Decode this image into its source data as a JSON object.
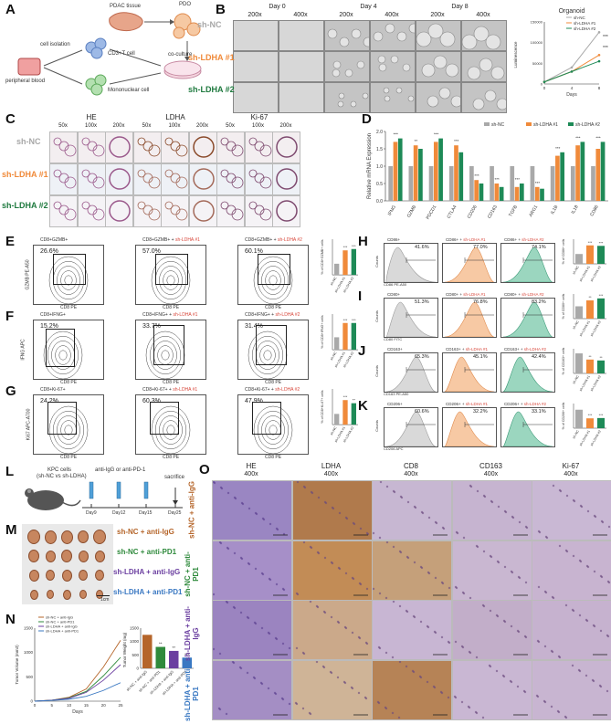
{
  "panels": [
    "A",
    "B",
    "C",
    "D",
    "E",
    "F",
    "G",
    "H",
    "I",
    "J",
    "K",
    "L",
    "M",
    "N",
    "O"
  ],
  "colors": {
    "nc": "#a9a9a9",
    "lh1": "#f08a3a",
    "lh2": "#1e8a57",
    "teal": "#4bbf9a",
    "purple": "#6b3fa0",
    "blue": "#3a78c2",
    "brown": "#b5652a"
  },
  "panelA": {
    "labels": {
      "pdac": "PDAC tissue",
      "pdo": "PDO",
      "cell_isolation": "cell isolation",
      "cd3": "CD3+T cell",
      "coculture": "co-culture",
      "mono": "Mononuclear cell",
      "pb": "peripheral blood"
    }
  },
  "panelB": {
    "days": [
      "Day 0",
      "Day 4",
      "Day 8"
    ],
    "mags": [
      "200x",
      "400x",
      "200x",
      "400x",
      "200x",
      "400x"
    ],
    "rows": [
      "sh-NC",
      "sh-LDHA #1",
      "sh-LDHA #2"
    ],
    "chart_data": {
      "type": "line",
      "title": "Organoid",
      "xlabel": "Days",
      "ylabel": "Luminescence",
      "x": [
        0,
        4,
        8
      ],
      "ylim": [
        0,
        150000
      ],
      "yticks": [
        "0",
        "50000",
        "100000",
        "150000"
      ],
      "series": [
        {
          "name": "sh-NC",
          "values": [
            5000,
            40000,
            125000
          ]
        },
        {
          "name": "sh-LDHA #1",
          "values": [
            5000,
            30000,
            70000
          ]
        },
        {
          "name": "sh-LDHA #2",
          "values": [
            5000,
            30000,
            55000
          ]
        }
      ],
      "annotations": [
        "***",
        "***"
      ]
    }
  },
  "panelC": {
    "stains": [
      "HE",
      "LDHA",
      "Ki-67"
    ],
    "mags": [
      "50x",
      "100x",
      "200x",
      "50x",
      "100x",
      "200x",
      "50x",
      "100x",
      "200x"
    ],
    "rows": [
      "sh-NC",
      "sh-LDHA #1",
      "sh-LDHA #2"
    ]
  },
  "panelD": {
    "chart_data": {
      "type": "bar",
      "ylabel": "Relative mRNA Expression",
      "ylim": [
        0,
        2.0
      ],
      "yticks": [
        "0.0",
        "0.5",
        "1.0",
        "1.5",
        "2.0"
      ],
      "categories": [
        "IFNG",
        "GZMB",
        "PDCD1",
        "CTLA4",
        "CD206",
        "CD163",
        "TGFB",
        "ARG1",
        "IL1B",
        "IL18",
        "CD86"
      ],
      "series": [
        {
          "name": "sh-NC",
          "values": [
            1,
            1,
            1,
            1,
            1,
            1,
            1,
            1,
            1,
            1,
            1
          ]
        },
        {
          "name": "sh-LDHA #1",
          "values": [
            1.7,
            1.6,
            1.7,
            1.6,
            0.6,
            0.5,
            0.4,
            0.4,
            1.3,
            1.6,
            1.5
          ]
        },
        {
          "name": "sh-LDHA #2",
          "values": [
            1.8,
            1.5,
            1.8,
            1.4,
            0.5,
            0.4,
            0.5,
            0.35,
            1.4,
            1.7,
            1.7
          ]
        }
      ],
      "annotations": [
        "***",
        "**",
        "***",
        "***",
        "***",
        "***",
        "***",
        "***",
        "***",
        "***",
        "***"
      ]
    }
  },
  "facsE": {
    "titles": [
      [
        "CD8+GZMB+",
        ""
      ],
      [
        "CD8+GZMB+ + ",
        "sh-LDHA #1"
      ],
      [
        "CD8+GZMB+ + ",
        "sh-LDHA #2"
      ]
    ],
    "pcts": [
      "26.6%",
      "57.0%",
      "60.1%"
    ],
    "ylabel": "GZMB PE-A50",
    "xlabel": "CD8 PE",
    "bar": {
      "ylabel": "% of CD8+GZMB+ cells",
      "categories": [
        "sh-NC",
        "sh-LDHA #1",
        "sh-LDHA #2"
      ],
      "values": [
        25,
        55,
        58
      ],
      "ylim": [
        0,
        80
      ],
      "sig": [
        "",
        "***",
        "***"
      ]
    }
  },
  "facsF": {
    "titles": [
      [
        "CD8+IFNG+",
        ""
      ],
      [
        "CD8+IFNG+ + ",
        "sh-LDHA #1"
      ],
      [
        "CD8+IFNG+ + ",
        "sh-LDHA #2"
      ]
    ],
    "pcts": [
      "15.2%",
      "33.7%",
      "31.4%"
    ],
    "ylabel": "IFNG APC",
    "xlabel": "CD8 PE",
    "bar": {
      "ylabel": "% of CD8+IFNG+ cells",
      "categories": [
        "sh-NC",
        "sh-LDHA #1",
        "sh-LDHA #2"
      ],
      "values": [
        14,
        30,
        30
      ],
      "ylim": [
        0,
        40
      ],
      "sig": [
        "",
        "***",
        "***"
      ]
    }
  },
  "facsG": {
    "titles": [
      [
        "CD8+Ki-67+",
        ""
      ],
      [
        "CD8+Ki-67+ + ",
        "sh-LDHA #1"
      ],
      [
        "CD8+Ki-67+ + ",
        "sh-LDHA #2"
      ]
    ],
    "pcts": [
      "24.2%",
      "60.3%",
      "47.9%"
    ],
    "ylabel": "Ki67 APC-A700",
    "xlabel": "CD8 PE",
    "bar": {
      "ylabel": "% of CD8+Ki-67+ cells",
      "categories": [
        "sh-NC",
        "sh-LDHA #1",
        "sh-LDHA #2"
      ],
      "values": [
        24,
        55,
        48
      ],
      "ylim": [
        0,
        80
      ],
      "sig": [
        "",
        "***",
        "**"
      ]
    }
  },
  "hists": [
    {
      "id": "H",
      "titles": [
        [
          "CD86+",
          ""
        ],
        [
          "CD86+ + ",
          "sh-LDHA #1"
        ],
        [
          "CD86+ + ",
          "sh-LDHA #2"
        ]
      ],
      "pcts": [
        "41.6%",
        "77.0%",
        "74.1%"
      ],
      "xlabel": "CD86 PE-A50",
      "bar": {
        "values": [
          40,
          75,
          73
        ],
        "ylim": [
          0,
          100
        ],
        "sig": [
          "",
          "***",
          "***"
        ],
        "ylabel": "% of CD86+ cells"
      }
    },
    {
      "id": "I",
      "titles": [
        [
          "CD80+",
          ""
        ],
        [
          "CD80+ + ",
          "sh-LDHA #1"
        ],
        [
          "CD80+ + ",
          "sh-LDHA #2"
        ]
      ],
      "pcts": [
        "51.3%",
        "76.8%",
        "83.2%"
      ],
      "xlabel": "CD80 FITC",
      "bar": {
        "values": [
          50,
          74,
          82
        ],
        "ylim": [
          0,
          100
        ],
        "sig": [
          "",
          "**",
          "***"
        ],
        "ylabel": "% of CD80+ cells"
      }
    },
    {
      "id": "J",
      "titles": [
        [
          "CD163+",
          ""
        ],
        [
          "CD163+ + ",
          "sh-LDHA #1"
        ],
        [
          "CD163+ + ",
          "sh-LDHA #2"
        ]
      ],
      "pcts": [
        "65.3%",
        "45.1%",
        "42.4%"
      ],
      "xlabel": "CD163 PE-A50",
      "bar": {
        "values": [
          65,
          45,
          42
        ],
        "ylim": [
          0,
          80
        ],
        "sig": [
          "",
          "**",
          "**"
        ],
        "ylabel": "% of CD163+ cells"
      }
    },
    {
      "id": "K",
      "titles": [
        [
          "CD206+",
          ""
        ],
        [
          "CD206+ + ",
          "sh-LDHA #1"
        ],
        [
          "CD206+ + ",
          "sh-LDHA #2"
        ]
      ],
      "pcts": [
        "60.6%",
        "32.2%",
        "33.1%"
      ],
      "xlabel": "CD206 APC",
      "bar": {
        "values": [
          60,
          32,
          33
        ],
        "ylim": [
          0,
          80
        ],
        "sig": [
          "",
          "***",
          "***"
        ],
        "ylabel": "% of CD206+ cells"
      }
    }
  ],
  "hist_counts_label": "Counts",
  "barcats": [
    "sh-NC",
    "sh-LDHA #1",
    "sh-LDHA #2"
  ],
  "panelL": {
    "kpc": "KPC cells",
    "kpc2": "(sh-NC vs sh-LDHA)",
    "treatment": "anti-IgG or anti-PD-1",
    "sacrifice": "sacrifice",
    "days": [
      "Day9",
      "Day12",
      "Day15",
      "Day25"
    ]
  },
  "panelM": {
    "groups": [
      "sh-NC + anti-IgG",
      "sh-NC + anti-PD1",
      "sh-LDHA + anti-IgG",
      "sh-LDHA + anti-PD1"
    ],
    "scale": "1cm"
  },
  "panelN": {
    "line": {
      "type": "line",
      "xlabel": "Days",
      "ylabel": "Tumor Volume (mm3)",
      "x": [
        0,
        5,
        10,
        15,
        20,
        25
      ],
      "ylim": [
        0,
        1500
      ],
      "yticks": [
        "0",
        "500",
        "1000",
        "1500"
      ],
      "series": [
        {
          "name": "sh-NC + anti-IgG",
          "values": [
            0,
            20,
            80,
            250,
            700,
            1250
          ]
        },
        {
          "name": "sh-NC + anti-PD1",
          "values": [
            0,
            20,
            70,
            200,
            520,
            900
          ]
        },
        {
          "name": "sh-LDHA + anti-IgG",
          "values": [
            0,
            20,
            60,
            180,
            430,
            750
          ]
        },
        {
          "name": "sh-LDHA + anti-PD1",
          "values": [
            0,
            15,
            40,
            100,
            220,
            380
          ]
        }
      ]
    },
    "bar": {
      "type": "bar",
      "ylabel": "Tumor Weight (mg)",
      "ylim": [
        0,
        1500
      ],
      "yticks": [
        "0",
        "500",
        "1000",
        "1500"
      ],
      "categories": [
        "sh-NC + anti-IgG",
        "sh-NC + anti-PD1",
        "sh-LDHA + anti-IgG",
        "sh-LDHA + anti-PD1"
      ],
      "values": [
        1250,
        800,
        650,
        400
      ],
      "sig": [
        "",
        "**",
        "**",
        "***"
      ]
    }
  },
  "panelO": {
    "stains": [
      "HE",
      "LDHA",
      "CD8",
      "CD163",
      "Ki-67"
    ],
    "mag": "400x",
    "rows": [
      "sh-NC + anti-IgG",
      "sh-NC + anti-PD1",
      "sh-LDHA + anti-IgG",
      "sh-LDHA + anti-PD1"
    ]
  }
}
